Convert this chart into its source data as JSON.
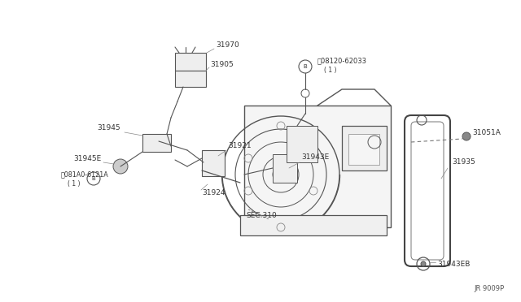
{
  "background_color": "#ffffff",
  "line_color": "#666666",
  "text_color": "#333333",
  "diagram_id": "JR 9009P",
  "figsize": [
    6.4,
    3.72
  ],
  "dpi": 100,
  "xlim": [
    0,
    640
  ],
  "ylim": [
    0,
    372
  ]
}
